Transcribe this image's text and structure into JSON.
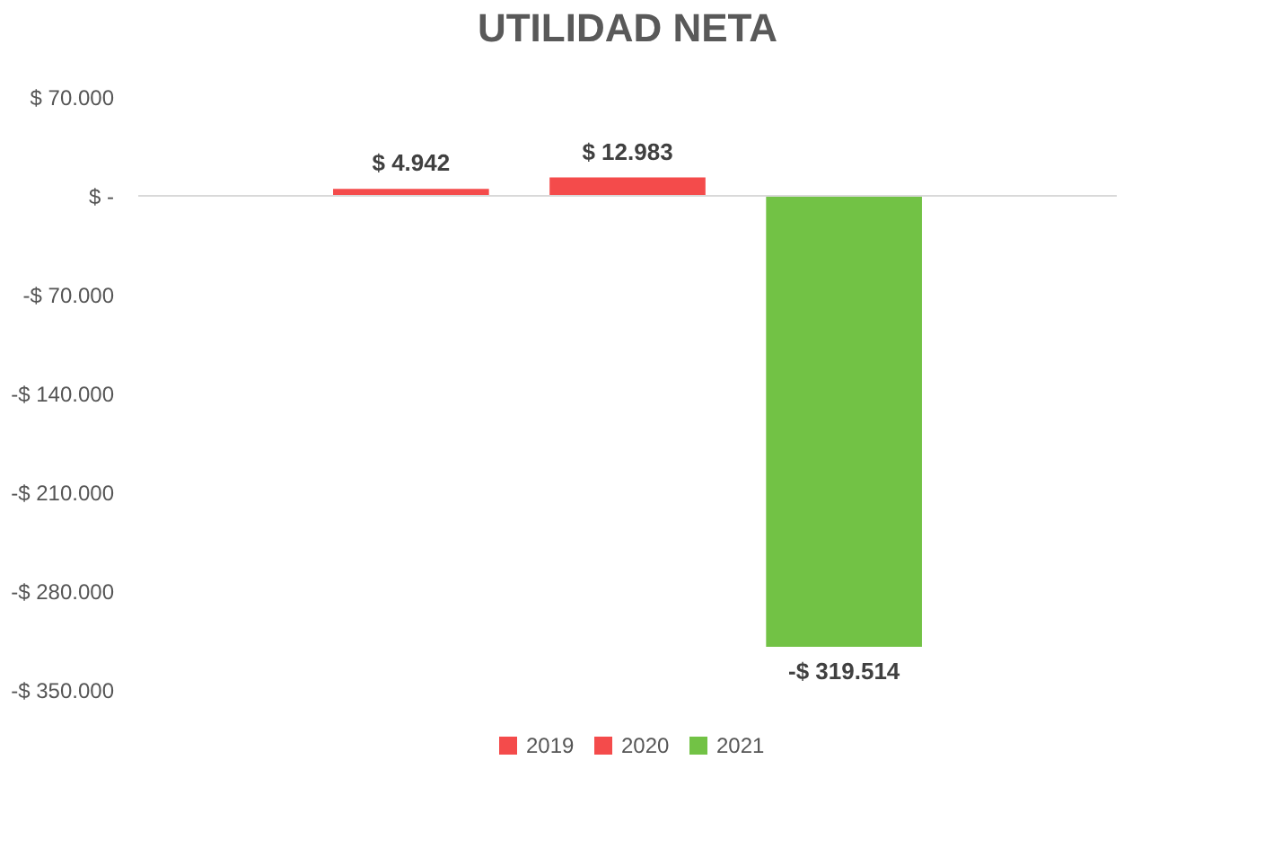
{
  "chart_data": {
    "type": "bar",
    "title": "UTILIDAD NETA",
    "categories": [
      null
    ],
    "series": [
      {
        "name": "2019",
        "color": "#f44b4b",
        "values": [
          4942
        ],
        "value_labels": [
          "$ 4.942"
        ]
      },
      {
        "name": "2020",
        "color": "#f44b4b",
        "values": [
          12983
        ],
        "value_labels": [
          "$ 12.983"
        ]
      },
      {
        "name": "2021",
        "color": "#72c245",
        "values": [
          -319514
        ],
        "value_labels": [
          "-$ 319.514"
        ]
      }
    ],
    "ylim": [
      -350000,
      70000
    ],
    "yticks": [
      {
        "value": 70000,
        "label": "$ 70.000"
      },
      {
        "value": 0,
        "label": "$ -"
      },
      {
        "value": -70000,
        "label": "-$ 70.000"
      },
      {
        "value": -140000,
        "label": "-$ 140.000"
      },
      {
        "value": -210000,
        "label": "-$ 210.000"
      },
      {
        "value": -280000,
        "label": "-$ 280.000"
      },
      {
        "value": -350000,
        "label": "-$ 350.000"
      }
    ],
    "ref_lines": [
      {
        "axis": "y",
        "value": 0,
        "color": "#d9d9d9"
      }
    ],
    "grid": false,
    "legend": "bottom"
  }
}
